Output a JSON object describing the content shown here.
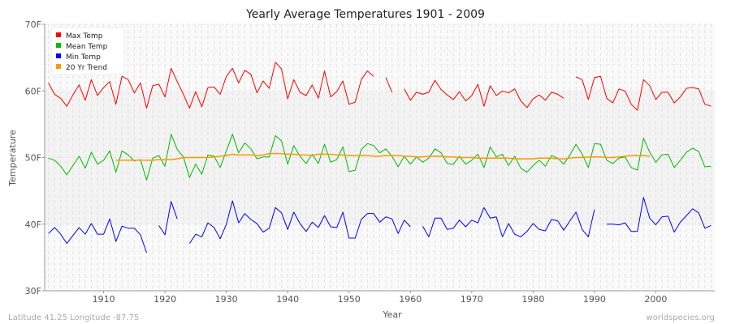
{
  "chart_data": {
    "type": "line",
    "title": "Yearly Average Temperatures 1901 - 2009",
    "xlabel": "Year",
    "ylabel": "Temperature",
    "xlim": [
      1901,
      2009
    ],
    "ylim": [
      30,
      70
    ],
    "x_ticks": [
      "1910",
      "1920",
      "1930",
      "1940",
      "1950",
      "1960",
      "1970",
      "1980",
      "1990",
      "2000"
    ],
    "y_ticks": [
      "30F",
      "40F",
      "50F",
      "60F",
      "70F"
    ],
    "grid": true,
    "legend_position": "top-left",
    "start_year": 1901,
    "series": [
      {
        "name": "Max Temp",
        "color": "#ff0000",
        "values": [
          61.2,
          59.5,
          58.9,
          57.7,
          59.4,
          60.9,
          58.6,
          61.7,
          59.3,
          60.5,
          61.4,
          58.0,
          62.2,
          61.7,
          59.7,
          61.2,
          57.4,
          60.8,
          61.0,
          59.1,
          63.4,
          61.4,
          59.5,
          57.4,
          59.9,
          57.6,
          60.5,
          60.6,
          59.5,
          62.2,
          63.4,
          61.2,
          63.1,
          62.5,
          59.7,
          61.5,
          60.4,
          64.3,
          63.3,
          58.8,
          61.7,
          59.8,
          59.3,
          60.9,
          58.9,
          63.0,
          59.1,
          59.9,
          61.5,
          58.0,
          58.3,
          61.7,
          63.0,
          62.2,
          null,
          62.0,
          59.8,
          null,
          60.3,
          58.6,
          59.8,
          59.5,
          59.8,
          61.6,
          60.2,
          59.4,
          58.7,
          59.9,
          58.5,
          59.3,
          61.0,
          57.7,
          60.8,
          59.3,
          60.0,
          59.7,
          60.3,
          58.5,
          57.5,
          58.8,
          59.4,
          58.6,
          59.8,
          59.5,
          58.9,
          null,
          62.1,
          61.7,
          58.7,
          62.0,
          62.2,
          58.9,
          58.2,
          60.3,
          60.0,
          58.0,
          57.1,
          61.7,
          60.8,
          58.7,
          59.8,
          59.8,
          58.2,
          59.1,
          60.4,
          60.5,
          60.3,
          58.0,
          57.7
        ]
      },
      {
        "name": "Mean Temp",
        "color": "#00bb00",
        "values": [
          49.9,
          49.6,
          48.7,
          47.4,
          48.8,
          50.2,
          48.4,
          50.8,
          49.0,
          49.6,
          51.0,
          47.8,
          51.0,
          50.4,
          49.5,
          49.7,
          46.6,
          49.9,
          50.3,
          48.7,
          53.5,
          51.2,
          50.1,
          47.0,
          49.0,
          47.5,
          50.4,
          50.2,
          48.5,
          51.0,
          53.5,
          50.7,
          52.2,
          51.3,
          49.8,
          50.1,
          50.1,
          53.3,
          52.5,
          49.0,
          51.8,
          50.2,
          49.1,
          50.5,
          49.1,
          52.0,
          49.3,
          49.7,
          51.6,
          47.9,
          48.1,
          51.2,
          52.1,
          51.8,
          50.7,
          51.3,
          50.2,
          48.6,
          50.2,
          49.0,
          50.1,
          49.3,
          49.9,
          51.3,
          50.7,
          49.1,
          49.0,
          50.2,
          49.0,
          49.6,
          50.5,
          48.5,
          51.6,
          50.1,
          50.5,
          48.8,
          50.2,
          48.4,
          47.8,
          48.8,
          49.6,
          48.7,
          50.3,
          49.9,
          49.0,
          50.4,
          52.0,
          50.5,
          48.5,
          52.1,
          52.0,
          49.6,
          49.1,
          49.9,
          50.1,
          48.5,
          48.1,
          52.9,
          50.8,
          49.3,
          50.4,
          50.5,
          48.5,
          49.6,
          50.8,
          51.4,
          50.9,
          48.6,
          48.7
        ]
      },
      {
        "name": "Min Temp",
        "color": "#0000ff",
        "values": [
          38.6,
          39.5,
          38.5,
          37.1,
          38.3,
          39.5,
          38.5,
          40.1,
          38.5,
          38.5,
          40.8,
          37.4,
          39.7,
          39.4,
          39.4,
          38.4,
          35.7,
          null,
          39.8,
          38.4,
          43.4,
          40.8,
          null,
          37.1,
          38.5,
          38.1,
          40.2,
          39.5,
          37.8,
          40.0,
          43.5,
          40.2,
          41.6,
          40.7,
          40.1,
          38.8,
          39.4,
          42.5,
          41.7,
          39.2,
          41.8,
          40.1,
          38.9,
          40.3,
          39.5,
          41.3,
          39.6,
          39.5,
          41.8,
          37.9,
          37.9,
          40.7,
          41.6,
          41.6,
          40.3,
          41.1,
          40.8,
          38.6,
          40.6,
          39.6,
          null,
          39.7,
          38.1,
          40.9,
          40.9,
          39.2,
          39.4,
          40.6,
          39.6,
          40.6,
          40.2,
          42.5,
          40.9,
          41.1,
          38.1,
          40.1,
          38.5,
          38.1,
          38.9,
          40.1,
          39.2,
          39.0,
          40.7,
          40.5,
          39.1,
          40.5,
          41.8,
          39.2,
          38.1,
          42.2,
          null,
          40.0,
          40.0,
          39.9,
          40.2,
          38.9,
          38.9,
          44.0,
          40.9,
          39.9,
          41.1,
          41.2,
          38.8,
          40.3,
          41.3,
          42.3,
          41.7,
          39.4,
          39.8
        ]
      },
      {
        "name": "20 Yr Trend",
        "color": "#ff9900",
        "start_year": 1912,
        "values": [
          49.6,
          49.6,
          49.6,
          49.6,
          49.6,
          49.6,
          49.6,
          49.7,
          49.7,
          49.7,
          49.8,
          50.0,
          50.0,
          50.0,
          50.0,
          50.0,
          50.1,
          50.2,
          50.3,
          50.5,
          50.4,
          50.4,
          50.4,
          50.3,
          50.4,
          50.6,
          50.6,
          50.6,
          50.5,
          50.5,
          50.4,
          50.4,
          50.3,
          50.5,
          50.5,
          50.5,
          50.4,
          50.4,
          50.3,
          50.3,
          50.3,
          50.3,
          50.2,
          50.2,
          50.3,
          50.3,
          50.3,
          50.2,
          50.2,
          50.1,
          50.1,
          50.2,
          50.2,
          50.2,
          50.1,
          50.1,
          50.0,
          50.0,
          50.0,
          49.9,
          49.9,
          49.9,
          49.9,
          49.9,
          49.9,
          49.8,
          49.8,
          49.8,
          49.8,
          49.9,
          49.9,
          49.9,
          49.8,
          49.8,
          49.9,
          50.0,
          50.0,
          50.1,
          50.1,
          50.1,
          50.0,
          50.0,
          50.1,
          50.2,
          50.3,
          50.3,
          50.3,
          50.2
        ]
      }
    ],
    "footer_left": "Latitude 41.25 Longitude -87.75",
    "footer_right": "worldspecies.org"
  }
}
